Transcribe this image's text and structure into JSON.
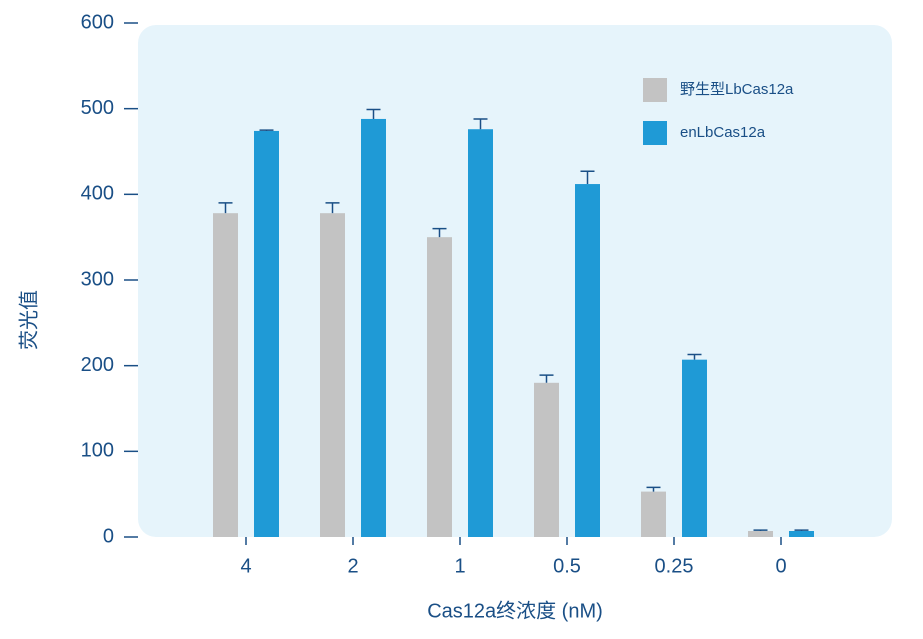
{
  "chart_data": {
    "type": "bar",
    "x_label": "Cas12a终浓度 (nM)",
    "y_label": "荧光值",
    "categories": [
      "4",
      "2",
      "1",
      "0.5",
      "0.25",
      "0"
    ],
    "series": [
      {
        "name": "野生型LbCas12a",
        "color": "#c3c3c3",
        "values": [
          378,
          378,
          350,
          180,
          53,
          7
        ],
        "errors": [
          12,
          12,
          10,
          9,
          5,
          1
        ]
      },
      {
        "name": "enLbCas12a",
        "color": "#1f9ad6",
        "values": [
          474,
          488,
          476,
          412,
          207,
          7
        ],
        "errors": [
          1,
          11,
          12,
          15,
          6,
          1
        ]
      }
    ],
    "ylim": [
      0,
      600
    ],
    "yticks": [
      0,
      100,
      200,
      300,
      400,
      500,
      600
    ],
    "legend": "top-right",
    "error_color": "#1a4f86"
  }
}
